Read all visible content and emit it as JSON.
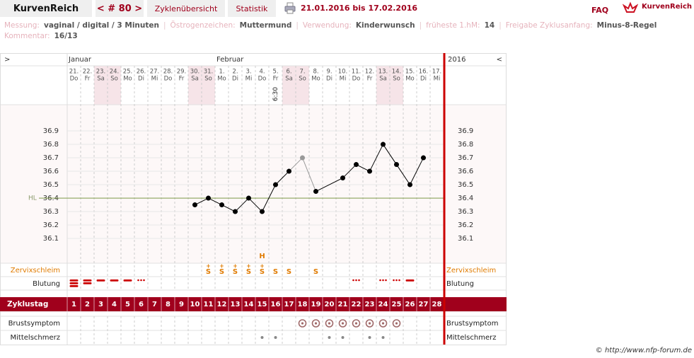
{
  "header": {
    "app": "KurvenReich",
    "cycle": "< # 80 >",
    "tabs": [
      "Zyklenübersicht",
      "Statistik"
    ],
    "range": "21.01.2016 bis 17.02.2016",
    "faq": "FAQ",
    "logo": "KurvenReich"
  },
  "info": [
    {
      "label": "Messung:",
      "value": "vaginal / digital / 3 Minuten"
    },
    {
      "label": "Östrogenzeichen:",
      "value": "Muttermund"
    },
    {
      "label": "Verwendung:",
      "value": "Kinderwunsch"
    },
    {
      "label": "früheste 1.hM:",
      "value": "14"
    },
    {
      "label": "Freigabe Zyklusanfang:",
      "value": "Minus-8-Regel"
    }
  ],
  "comment": {
    "label": "Kommentar:",
    "value": "16/13"
  },
  "chart_data": {
    "type": "line",
    "nav_left": ">",
    "nav_right": "<",
    "year": "2016",
    "months": [
      "Januar",
      "Februar"
    ],
    "categories": [
      "21.",
      "22.",
      "23.",
      "24.",
      "25.",
      "26.",
      "27.",
      "28.",
      "29.",
      "30.",
      "31.",
      "1.",
      "2.",
      "3.",
      "4.",
      "5.",
      "6.",
      "7.",
      "8.",
      "9.",
      "10.",
      "11.",
      "12.",
      "13.",
      "14.",
      "15.",
      "16.",
      "17."
    ],
    "weekdays": [
      "Do",
      "Fr",
      "Sa",
      "So",
      "Mo",
      "Di",
      "Mi",
      "Do",
      "Fr",
      "Sa",
      "So",
      "Mo",
      "Di",
      "Mi",
      "Do",
      "Fr",
      "Sa",
      "So",
      "Mo",
      "Di",
      "Mi",
      "Do",
      "Fr",
      "Sa",
      "So",
      "Mo",
      "Di",
      "Mi"
    ],
    "weekend": [
      false,
      false,
      true,
      true,
      false,
      false,
      false,
      false,
      false,
      true,
      true,
      false,
      false,
      false,
      false,
      false,
      true,
      true,
      false,
      false,
      false,
      false,
      false,
      true,
      true,
      false,
      false,
      false
    ],
    "weekend_color": "#f6e4e8",
    "times": [
      null,
      null,
      null,
      null,
      null,
      null,
      null,
      null,
      null,
      null,
      null,
      null,
      null,
      null,
      null,
      "6:30",
      null,
      null,
      null,
      null,
      null,
      null,
      null,
      null,
      null,
      null,
      null,
      null
    ],
    "values": [
      null,
      null,
      null,
      null,
      null,
      null,
      null,
      null,
      null,
      36.35,
      36.4,
      36.35,
      36.3,
      36.4,
      36.3,
      36.5,
      36.6,
      36.7,
      36.45,
      null,
      36.55,
      36.65,
      36.6,
      36.8,
      36.65,
      36.5,
      36.7,
      null
    ],
    "point_colors": [
      null,
      null,
      null,
      null,
      null,
      null,
      null,
      null,
      null,
      "#000000",
      "#000000",
      "#000000",
      "#000000",
      "#000000",
      "#000000",
      "#000000",
      "#000000",
      "#999999",
      "#000000",
      null,
      "#000000",
      "#000000",
      "#000000",
      "#000000",
      "#000000",
      "#000000",
      "#000000",
      null
    ],
    "ylim": [
      35.916,
      37.095
    ],
    "yticks": [
      36.1,
      36.2,
      36.3,
      36.4,
      36.5,
      36.6,
      36.7,
      36.8,
      36.9
    ],
    "grid": true,
    "hl": {
      "label": "HL",
      "value": 36.4,
      "color": "#8aa35a"
    },
    "cervix": {
      "label": "Zervixschleim",
      "color": "#e07b00",
      "position": [
        null,
        null,
        null,
        null,
        null,
        null,
        null,
        null,
        null,
        null,
        null,
        null,
        null,
        null,
        "H",
        null,
        null,
        null,
        null,
        null,
        null,
        null,
        null,
        null,
        null,
        null,
        null,
        null
      ],
      "signs": [
        null,
        null,
        null,
        null,
        null,
        null,
        null,
        null,
        null,
        null,
        "S",
        "S",
        "S",
        "S",
        "S",
        "S",
        "S",
        null,
        "S",
        null,
        null,
        null,
        null,
        null,
        null,
        null,
        null,
        null
      ],
      "superscripts": [
        null,
        null,
        null,
        null,
        null,
        null,
        null,
        null,
        null,
        null,
        "+",
        "+",
        "+",
        "+",
        "+",
        null,
        null,
        null,
        null,
        null,
        null,
        null,
        null,
        null,
        null,
        null,
        null,
        null
      ]
    },
    "bleeding": {
      "label": "Blutung",
      "color": "#cc0000",
      "values": [
        4,
        3,
        2,
        2,
        2,
        1,
        null,
        null,
        null,
        null,
        null,
        null,
        null,
        null,
        null,
        null,
        null,
        null,
        null,
        null,
        null,
        1,
        null,
        1,
        1,
        2,
        null,
        null
      ]
    },
    "cycle_day": {
      "label": "Zyklustag",
      "color": "#a0001c",
      "values": [
        1,
        2,
        3,
        4,
        5,
        6,
        7,
        8,
        9,
        10,
        11,
        12,
        13,
        14,
        15,
        16,
        17,
        18,
        19,
        20,
        21,
        22,
        23,
        24,
        25,
        26,
        27,
        28
      ]
    },
    "breast": {
      "label": "Brustsymptom",
      "color": "#a06a6a",
      "values": [
        null,
        null,
        null,
        null,
        null,
        null,
        null,
        null,
        null,
        null,
        null,
        null,
        null,
        null,
        null,
        null,
        null,
        1,
        1,
        1,
        1,
        1,
        1,
        1,
        1,
        null,
        null,
        null
      ]
    },
    "midpain": {
      "label": "Mittelschmerz",
      "color": "#888888",
      "values": [
        null,
        null,
        null,
        null,
        null,
        null,
        null,
        null,
        null,
        null,
        null,
        null,
        null,
        null,
        1,
        1,
        null,
        null,
        null,
        1,
        1,
        null,
        1,
        1,
        null,
        null,
        null,
        null
      ]
    }
  },
  "footer": "© http://www.nfp-forum.de"
}
